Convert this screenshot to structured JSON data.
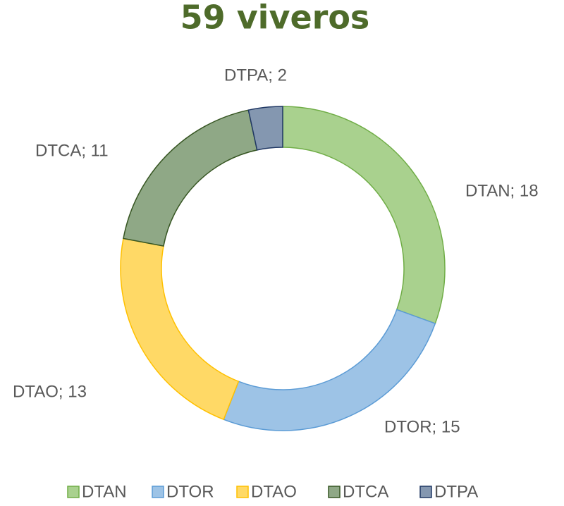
{
  "chart_data": {
    "type": "donut",
    "title": "59 viveros",
    "categories": [
      "DTAN",
      "DTOR",
      "DTAO",
      "DTCA",
      "DTPA"
    ],
    "values": [
      18,
      15,
      13,
      11,
      2
    ],
    "value_labels": [
      "DTAN; 18",
      "DTOR; 15",
      "DTAO; 13",
      "DTCA; 11",
      "DTPA; 2"
    ],
    "colors": [
      "#a9d18e",
      "#9dc3e6",
      "#ffd966",
      "#8fa886",
      "#8497b0"
    ],
    "edge_colors": [
      "#70ad47",
      "#5b9bd5",
      "#ffc000",
      "#375623",
      "#203864"
    ],
    "legend": "bottom"
  }
}
